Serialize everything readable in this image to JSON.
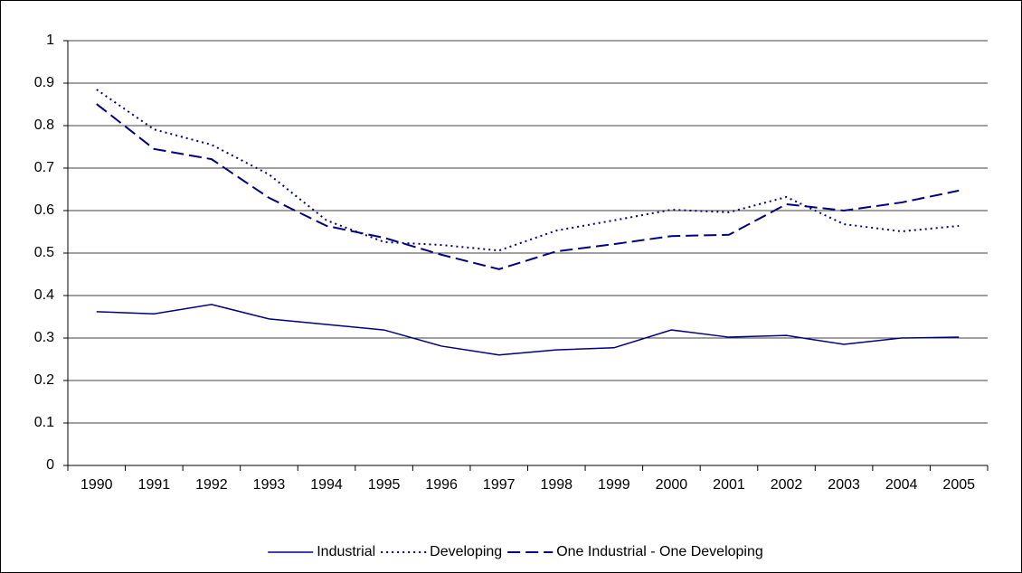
{
  "chart_data": {
    "type": "line",
    "categories": [
      "1990",
      "1991",
      "1992",
      "1993",
      "1994",
      "1995",
      "1996",
      "1997",
      "1998",
      "1999",
      "2000",
      "2001",
      "2002",
      "2003",
      "2004",
      "2005"
    ],
    "series": [
      {
        "name": "Industrial",
        "color": "#000080",
        "line_style": "solid",
        "values": [
          0.362,
          0.357,
          0.379,
          0.345,
          0.332,
          0.319,
          0.281,
          0.26,
          0.272,
          0.277,
          0.319,
          0.302,
          0.306,
          0.285,
          0.3,
          0.302
        ]
      },
      {
        "name": "Developing",
        "color": "#000080",
        "line_style": "dotted",
        "values": [
          0.885,
          0.791,
          0.755,
          0.685,
          0.577,
          0.526,
          0.519,
          0.506,
          0.553,
          0.577,
          0.602,
          0.596,
          0.632,
          0.568,
          0.551,
          0.564
        ]
      },
      {
        "name": "One Industrial - One Developing",
        "color": "#000080",
        "line_style": "dashed",
        "values": [
          0.851,
          0.745,
          0.721,
          0.63,
          0.564,
          0.536,
          0.496,
          0.462,
          0.504,
          0.521,
          0.54,
          0.543,
          0.615,
          0.6,
          0.619,
          0.647
        ]
      }
    ],
    "ylim": [
      0,
      1
    ],
    "yticks": [
      0,
      0.1,
      0.2,
      0.3,
      0.4,
      0.5,
      0.6,
      0.7,
      0.8,
      0.9,
      1
    ],
    "grid": true,
    "legend": "bottom"
  }
}
